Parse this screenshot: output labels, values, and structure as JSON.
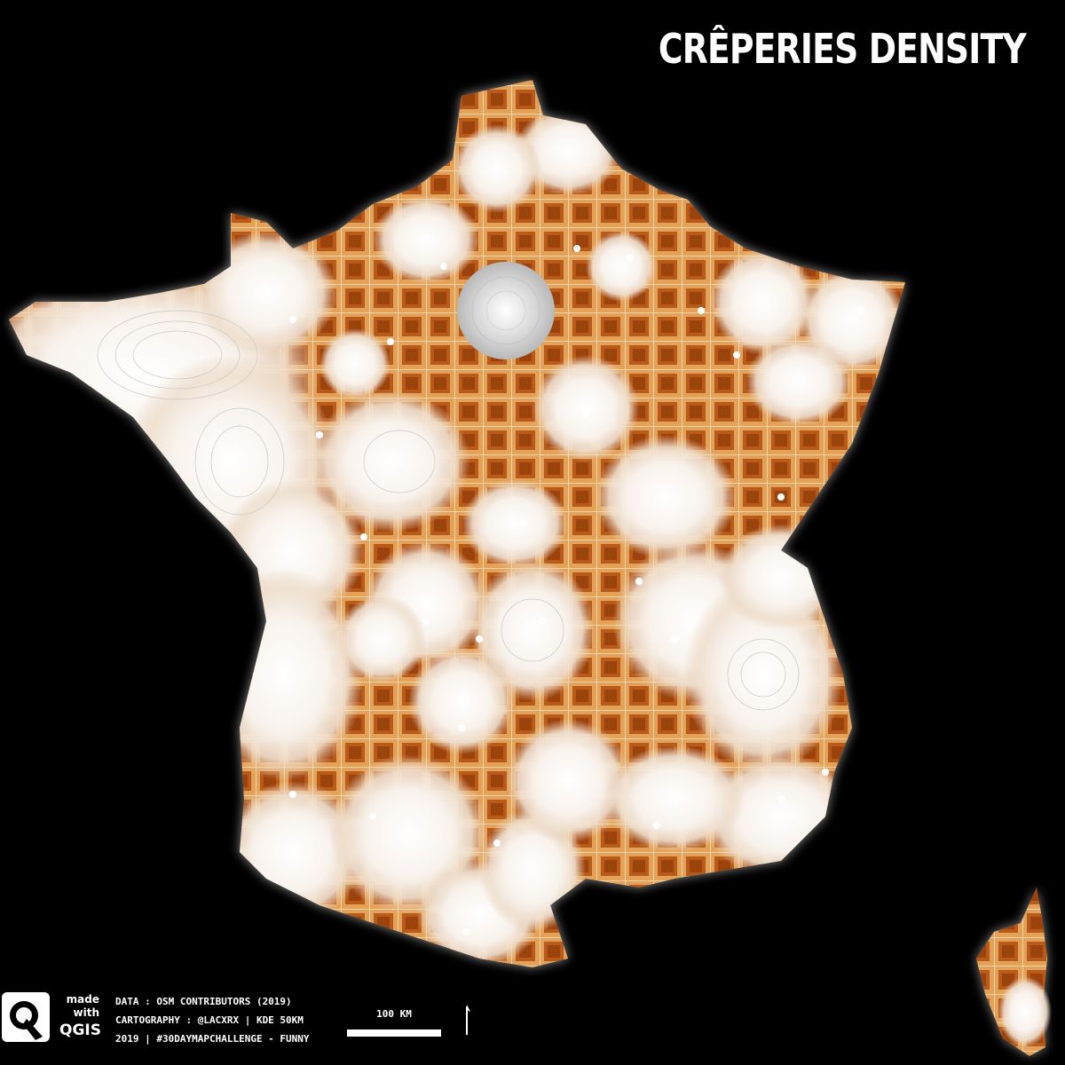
{
  "title": "CRÊPERIES DENSITY",
  "credits": {
    "line1": "DATA : OSM CONTRIBUTORS (2019)",
    "line2": "CARTOGRAPHY : @LACXRX | KDE 50KM",
    "line3": "2019 | #30DAYMAPCHALLENGE - FUNNY"
  },
  "logo": {
    "made": "made",
    "with": "with",
    "qgis": "QGIS",
    "icon": "qgis-logo-icon"
  },
  "scale": {
    "label": "100 KM"
  },
  "colors": {
    "background": "#000000",
    "low_density": "#f6f1ec",
    "waffle_light": "#d98e3e",
    "waffle_dark": "#a24a0e",
    "highlight": "#ffffff"
  }
}
